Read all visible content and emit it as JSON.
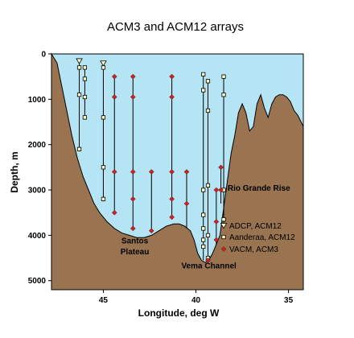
{
  "chart_data": {
    "type": "scatter",
    "title": "ACM3 and ACM12 arrays",
    "xlabel": "Longitude, deg W",
    "ylabel": "Depth, m",
    "xlim": [
      47.8,
      34.2
    ],
    "ylim": [
      5200,
      0
    ],
    "x_ticks": [
      {
        "value": 45,
        "label": "45"
      },
      {
        "value": 40,
        "label": "40"
      },
      {
        "value": 35,
        "label": "35"
      }
    ],
    "y_ticks": [
      {
        "value": 0,
        "label": "0"
      },
      {
        "value": 1000,
        "label": "1000"
      },
      {
        "value": 2000,
        "label": "2000"
      },
      {
        "value": 3000,
        "label": "3000"
      },
      {
        "value": 4000,
        "label": "4000"
      },
      {
        "value": 5000,
        "label": "5000"
      }
    ],
    "colors": {
      "water": "#b5e4f5",
      "seafloor": "#9a7450",
      "seafloor_outline": "#000000",
      "mooring_line": "#000000",
      "adcp_fill": "#ffffcc",
      "aanderaa_fill": "#ffffcc",
      "vacm_fill": "#cc2222"
    },
    "legend": {
      "placement": "right",
      "entries": [
        {
          "name": "ADCP, ACM12",
          "marker": "triangle-down"
        },
        {
          "name": "Aanderaa, ACM12",
          "marker": "square"
        },
        {
          "name": "VACM, ACM3",
          "marker": "diamond"
        }
      ]
    },
    "annotations": [
      {
        "text": "Rio Grande Rise",
        "x": 36.6,
        "y": 3020
      },
      {
        "text": "Santos",
        "x": 43.3,
        "y": 4180
      },
      {
        "text": "Plateau",
        "x": 43.3,
        "y": 4420
      },
      {
        "text": "Vema Channel",
        "x": 39.3,
        "y": 4730
      }
    ],
    "bathymetry": {
      "lon": [
        47.8,
        47.5,
        47.3,
        47.0,
        46.7,
        46.4,
        46.1,
        45.8,
        45.5,
        45.2,
        44.8,
        44.4,
        44.0,
        43.6,
        43.2,
        42.8,
        42.4,
        42.0,
        41.6,
        41.2,
        40.9,
        40.6,
        40.3,
        40.1,
        39.9,
        39.7,
        39.5,
        39.3,
        39.1,
        38.9,
        38.7,
        38.6,
        38.5,
        38.3,
        38.1,
        37.9,
        37.7,
        37.5,
        37.3,
        37.1,
        36.9,
        36.7,
        36.5,
        36.3,
        36.1,
        35.9,
        35.7,
        35.5,
        35.3,
        35.1,
        34.9,
        34.7,
        34.5,
        34.2
      ],
      "depth": [
        0,
        200,
        600,
        1200,
        1800,
        2300,
        2700,
        3000,
        3300,
        3500,
        3700,
        3850,
        3950,
        4000,
        4050,
        4050,
        4000,
        3900,
        3800,
        3750,
        3750,
        3800,
        3900,
        4100,
        4400,
        4550,
        4600,
        4550,
        4400,
        4200,
        4000,
        3700,
        3400,
        2800,
        2200,
        1800,
        1300,
        1100,
        1300,
        1700,
        1600,
        1100,
        900,
        1200,
        1400,
        1100,
        950,
        900,
        900,
        950,
        1050,
        1250,
        1350,
        1600
      ]
    },
    "moorings": [
      {
        "lon": 46.3,
        "top": 150,
        "bottom": 2150,
        "instruments": [
          {
            "type": "ADCP, ACM12",
            "depth": 150
          },
          {
            "type": "Aanderaa, ACM12",
            "depth": 300
          },
          {
            "type": "Aanderaa, ACM12",
            "depth": 900
          },
          {
            "type": "Aanderaa, ACM12",
            "depth": 2100
          }
        ]
      },
      {
        "lon": 46.0,
        "top": 300,
        "bottom": 1450,
        "instruments": [
          {
            "type": "Aanderaa, ACM12",
            "depth": 300
          },
          {
            "type": "Aanderaa, ACM12",
            "depth": 550
          },
          {
            "type": "Aanderaa, ACM12",
            "depth": 950
          },
          {
            "type": "Aanderaa, ACM12",
            "depth": 1400
          }
        ]
      },
      {
        "lon": 45.0,
        "top": 200,
        "bottom": 3250,
        "instruments": [
          {
            "type": "ADCP, ACM12",
            "depth": 200
          },
          {
            "type": "Aanderaa, ACM12",
            "depth": 300
          },
          {
            "type": "Aanderaa, ACM12",
            "depth": 1400
          },
          {
            "type": "Aanderaa, ACM12",
            "depth": 2500
          },
          {
            "type": "Aanderaa, ACM12",
            "depth": 3200
          }
        ]
      },
      {
        "lon": 44.4,
        "top": 500,
        "bottom": 3550,
        "instruments": [
          {
            "type": "VACM, ACM3",
            "depth": 500
          },
          {
            "type": "VACM, ACM3",
            "depth": 950
          },
          {
            "type": "VACM, ACM3",
            "depth": 2600
          },
          {
            "type": "VACM, ACM3",
            "depth": 3500
          }
        ]
      },
      {
        "lon": 43.4,
        "top": 500,
        "bottom": 3850,
        "instruments": [
          {
            "type": "VACM, ACM3",
            "depth": 500
          },
          {
            "type": "VACM, ACM3",
            "depth": 950
          },
          {
            "type": "VACM, ACM3",
            "depth": 2600
          },
          {
            "type": "VACM, ACM3",
            "depth": 3200
          },
          {
            "type": "VACM, ACM3",
            "depth": 3850
          }
        ]
      },
      {
        "lon": 42.4,
        "top": 2600,
        "bottom": 3900,
        "instruments": [
          {
            "type": "VACM, ACM3",
            "depth": 2600
          },
          {
            "type": "VACM, ACM3",
            "depth": 3900
          }
        ]
      },
      {
        "lon": 41.3,
        "top": 500,
        "bottom": 3650,
        "instruments": [
          {
            "type": "VACM, ACM3",
            "depth": 500
          },
          {
            "type": "VACM, ACM3",
            "depth": 950
          },
          {
            "type": "VACM, ACM3",
            "depth": 2600
          },
          {
            "type": "VACM, ACM3",
            "depth": 3200
          },
          {
            "type": "VACM, ACM3",
            "depth": 3600
          }
        ]
      },
      {
        "lon": 40.5,
        "top": 2600,
        "bottom": 3850,
        "instruments": [
          {
            "type": "VACM, ACM3",
            "depth": 2600
          },
          {
            "type": "VACM, ACM3",
            "depth": 3300
          }
        ]
      },
      {
        "lon": 39.6,
        "top": 450,
        "bottom": 4550,
        "instruments": [
          {
            "type": "Aanderaa, ACM12",
            "depth": 450
          },
          {
            "type": "Aanderaa, ACM12",
            "depth": 800
          },
          {
            "type": "Aanderaa, ACM12",
            "depth": 3000
          },
          {
            "type": "Aanderaa, ACM12",
            "depth": 3550
          },
          {
            "type": "Aanderaa, ACM12",
            "depth": 3850
          },
          {
            "type": "Aanderaa, ACM12",
            "depth": 4100
          },
          {
            "type": "Aanderaa, ACM12",
            "depth": 4250
          }
        ]
      },
      {
        "lon": 39.35,
        "top": 600,
        "bottom": 4550,
        "instruments": [
          {
            "type": "Aanderaa, ACM12",
            "depth": 600
          },
          {
            "type": "Aanderaa, ACM12",
            "depth": 1250
          },
          {
            "type": "Aanderaa, ACM12",
            "depth": 2900
          },
          {
            "type": "Aanderaa, ACM12",
            "depth": 4000
          },
          {
            "type": "Aanderaa, ACM12",
            "depth": 4500
          },
          {
            "type": "VACM, ACM3",
            "depth": 4550
          }
        ]
      },
      {
        "lon": 38.9,
        "top": 3000,
        "bottom": 4200,
        "instruments": [
          {
            "type": "VACM, ACM3",
            "depth": 3000
          },
          {
            "type": "VACM, ACM3",
            "depth": 3700
          },
          {
            "type": "VACM, ACM3",
            "depth": 4100
          }
        ]
      },
      {
        "lon": 38.5,
        "top": 500,
        "bottom": 3750,
        "instruments": [
          {
            "type": "Aanderaa, ACM12",
            "depth": 500
          },
          {
            "type": "Aanderaa, ACM12",
            "depth": 900
          },
          {
            "type": "Aanderaa, ACM12",
            "depth": 3000
          },
          {
            "type": "Aanderaa, ACM12",
            "depth": 3650
          }
        ]
      },
      {
        "lon": 38.65,
        "top": 2500,
        "bottom": 3300,
        "instruments": [
          {
            "type": "VACM, ACM3",
            "depth": 2500
          },
          {
            "type": "VACM, ACM3",
            "depth": 3000
          }
        ]
      }
    ]
  }
}
